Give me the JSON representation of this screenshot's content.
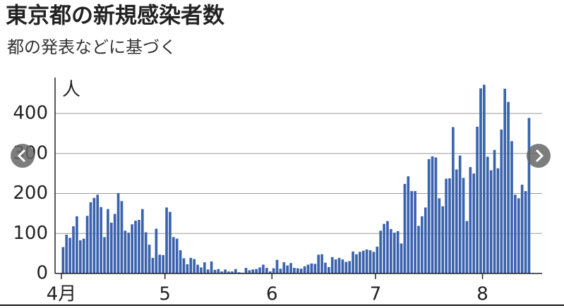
{
  "chart_data": {
    "type": "bar",
    "title": "東京都の新規感染者数",
    "subtitle": "都の発表などに基づく",
    "y_label": "人",
    "color": "#3b63ad",
    "grid": true,
    "ylim": [
      0,
      490
    ],
    "yticks": [
      0,
      100,
      200,
      300,
      400
    ],
    "categories": [
      "4月",
      null,
      null,
      null,
      null,
      null,
      null,
      null,
      null,
      null,
      null,
      null,
      null,
      null,
      null,
      null,
      null,
      null,
      null,
      null,
      null,
      null,
      null,
      null,
      null,
      null,
      null,
      null,
      null,
      null,
      "5",
      null,
      null,
      null,
      null,
      null,
      null,
      null,
      null,
      null,
      null,
      null,
      null,
      null,
      null,
      null,
      null,
      null,
      null,
      null,
      null,
      null,
      null,
      null,
      null,
      null,
      null,
      null,
      null,
      null,
      null,
      "6",
      null,
      null,
      null,
      null,
      null,
      null,
      null,
      null,
      null,
      null,
      null,
      null,
      null,
      null,
      null,
      null,
      null,
      null,
      null,
      null,
      null,
      null,
      null,
      null,
      null,
      null,
      null,
      null,
      null,
      "7",
      null,
      null,
      null,
      null,
      null,
      null,
      null,
      null,
      null,
      null,
      null,
      null,
      null,
      null,
      null,
      null,
      null,
      null,
      null,
      null,
      null,
      null,
      null,
      null,
      null,
      null,
      null,
      null,
      null,
      null,
      "8",
      null,
      null,
      null,
      null,
      null,
      null,
      null,
      null,
      null,
      null,
      null,
      null,
      null
    ],
    "values": [
      66,
      97,
      89,
      118,
      143,
      83,
      87,
      144,
      178,
      189,
      197,
      166,
      91,
      161,
      127,
      149,
      201,
      181,
      107,
      102,
      123,
      132,
      134,
      161,
      103,
      72,
      39,
      112,
      47,
      46,
      165,
      154,
      91,
      87,
      58,
      38,
      23,
      39,
      36,
      22,
      15,
      28,
      10,
      30,
      9,
      11,
      5,
      10,
      5,
      5,
      11,
      3,
      2,
      14,
      8,
      10,
      11,
      15,
      22,
      14,
      5,
      13,
      34,
      12,
      28,
      20,
      26,
      14,
      13,
      12,
      18,
      22,
      25,
      24,
      47,
      48,
      27,
      16,
      41,
      35,
      39,
      35,
      29,
      31,
      55,
      48,
      54,
      57,
      60,
      58,
      54,
      67,
      107,
      124,
      131,
      111,
      102,
      106,
      75,
      224,
      243,
      206,
      206,
      119,
      143,
      165,
      286,
      293,
      290,
      188,
      168,
      237,
      238,
      366,
      260,
      295,
      239,
      131,
      266,
      250,
      367,
      463,
      472,
      292,
      258,
      309,
      263,
      360,
      462,
      429,
      331,
      197,
      188,
      222,
      206,
      389
    ]
  }
}
